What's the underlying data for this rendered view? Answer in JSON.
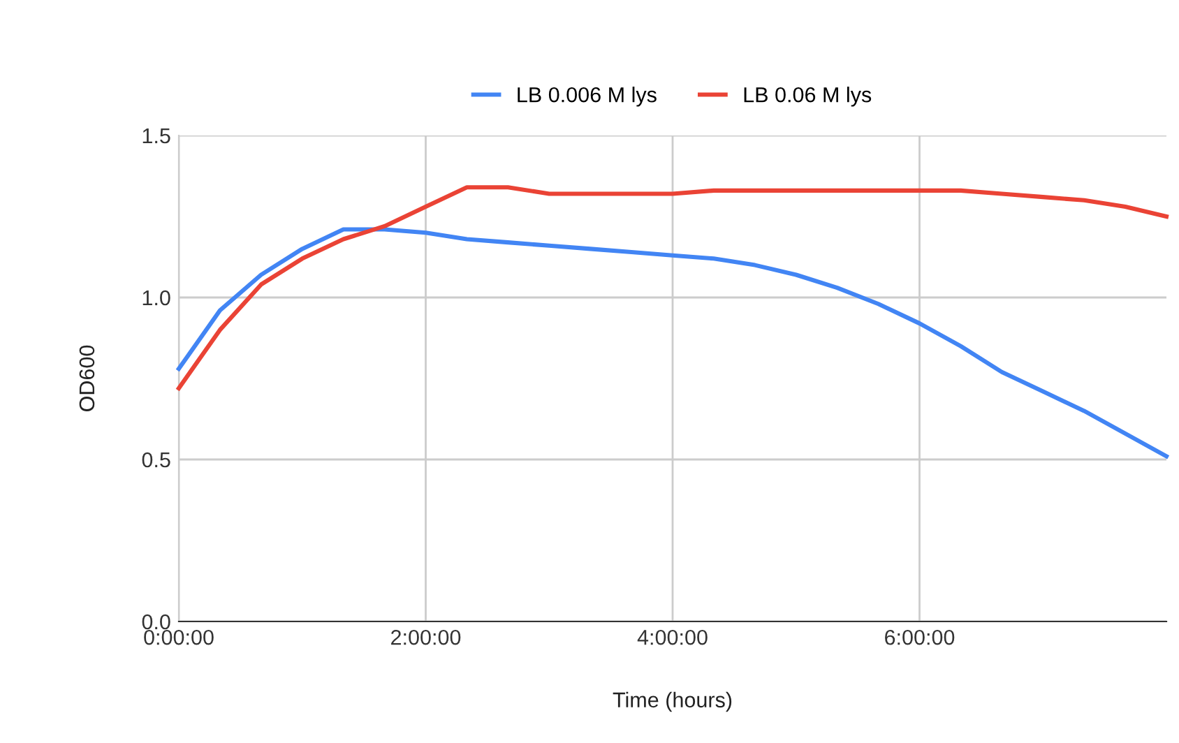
{
  "chart_data": {
    "type": "line",
    "xlabel": "Time (hours)",
    "ylabel": "OD600",
    "x": [
      0,
      0.3333,
      0.6667,
      1,
      1.3333,
      1.6667,
      2,
      2.3333,
      2.6667,
      3,
      3.3333,
      3.6667,
      4,
      4.3333,
      4.6667,
      5,
      5.3333,
      5.6667,
      6,
      6.3333,
      6.6667,
      7,
      7.3333,
      7.6667,
      8
    ],
    "series": [
      {
        "name": "LB 0.006 M lys",
        "color": "#4285f4",
        "values": [
          0.78,
          0.96,
          1.07,
          1.15,
          1.21,
          1.21,
          1.2,
          1.18,
          1.17,
          1.16,
          1.15,
          1.14,
          1.13,
          1.12,
          1.1,
          1.07,
          1.03,
          0.98,
          0.92,
          0.85,
          0.77,
          0.71,
          0.65,
          0.58,
          0.51
        ]
      },
      {
        "name": "LB 0.06 M lys",
        "color": "#ea4335",
        "values": [
          0.72,
          0.9,
          1.04,
          1.12,
          1.18,
          1.22,
          1.28,
          1.34,
          1.34,
          1.32,
          1.32,
          1.32,
          1.32,
          1.33,
          1.33,
          1.33,
          1.33,
          1.33,
          1.33,
          1.33,
          1.32,
          1.31,
          1.3,
          1.28,
          1.25
        ]
      }
    ],
    "xlim": [
      0,
      8
    ],
    "xticks": [
      {
        "value": 0,
        "label": "0:00:00"
      },
      {
        "value": 2,
        "label": "2:00:00"
      },
      {
        "value": 4,
        "label": "4:00:00"
      },
      {
        "value": 6,
        "label": "6:00:00"
      }
    ],
    "ylim": [
      0,
      1.5
    ],
    "yticks": [
      {
        "value": 0,
        "label": "0.0"
      },
      {
        "value": 0.5,
        "label": "0.5"
      },
      {
        "value": 1,
        "label": "1.0"
      },
      {
        "value": 1.5,
        "label": "1.5"
      }
    ],
    "grid": true,
    "legend": "top",
    "marker": "none",
    "line_style": "solid"
  }
}
